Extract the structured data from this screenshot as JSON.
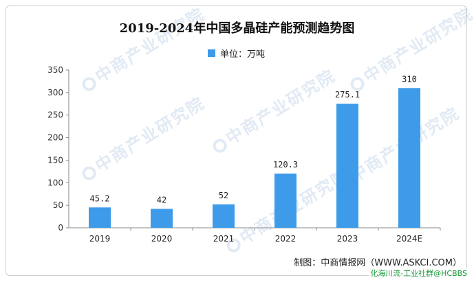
{
  "chart_data": {
    "type": "bar",
    "title": "2019-2024年中国多晶硅产能预测趋势图",
    "categories": [
      "2019",
      "2020",
      "2021",
      "2022",
      "2023",
      "2024E"
    ],
    "series": [
      {
        "name": "单位：万吨",
        "values": [
          45.2,
          42,
          52,
          120.3,
          275.1,
          310
        ]
      }
    ],
    "data_labels": [
      "45.2",
      "42",
      "52",
      "120.3",
      "275.1",
      "310"
    ],
    "y_ticks": [
      "0",
      "50",
      "100",
      "150",
      "200",
      "250",
      "300",
      "350"
    ],
    "ylim": [
      0,
      350
    ],
    "xlabel": "",
    "ylabel": "",
    "grid": false,
    "legend_position": "top-center",
    "bar_color": "#3d9be9"
  },
  "watermark": "中商产业研究院",
  "source": "制图：中商情报网（WWW.ASKCI.COM）",
  "credit": "化海川流-工业社群@HCBBS"
}
